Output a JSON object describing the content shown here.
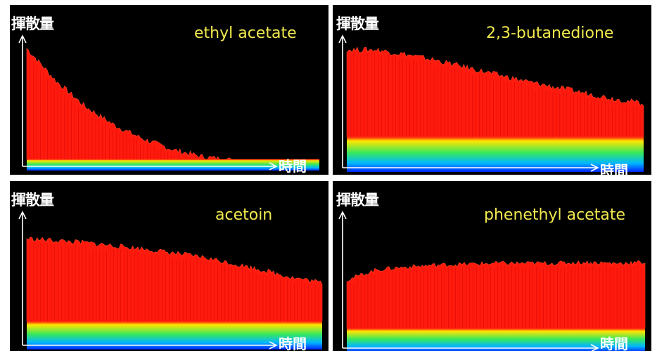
{
  "chart_data": [
    {
      "type": "area",
      "title": "ethyl acetate",
      "ylabel": "揮散量",
      "xlabel": "時間",
      "x": [
        0,
        0.1,
        0.2,
        0.3,
        0.4,
        0.5,
        0.6,
        0.7,
        0.8,
        0.9,
        1.0
      ],
      "values": [
        1.0,
        0.72,
        0.5,
        0.34,
        0.22,
        0.13,
        0.07,
        0.04,
        0.02,
        0.01,
        0.0
      ],
      "colors": {
        "body": "#ff1a0e",
        "band_top": "#ffe600",
        "band_mid": "#39e85a",
        "band_low": "#00b7ff",
        "base": "#0024ff"
      }
    },
    {
      "type": "area",
      "title": "2,3-butanedione",
      "ylabel": "揮散量",
      "xlabel": "時間",
      "x": [
        0,
        0.1,
        0.2,
        0.3,
        0.4,
        0.5,
        0.6,
        0.7,
        0.8,
        0.9,
        1.0
      ],
      "values": [
        1.0,
        1.0,
        0.96,
        0.91,
        0.85,
        0.79,
        0.73,
        0.68,
        0.63,
        0.58,
        0.54
      ],
      "colors": {
        "body": "#ff1a0e",
        "band_top": "#ffe600",
        "band_mid": "#39e85a",
        "band_low": "#00b7ff",
        "base": "#0024ff"
      }
    },
    {
      "type": "area",
      "title": "acetoin",
      "ylabel": "揮散量",
      "xlabel": "時間",
      "x": [
        0,
        0.1,
        0.2,
        0.3,
        0.4,
        0.5,
        0.6,
        0.7,
        0.8,
        0.9,
        1.0
      ],
      "values": [
        1.0,
        0.98,
        0.96,
        0.93,
        0.9,
        0.86,
        0.82,
        0.76,
        0.7,
        0.63,
        0.58
      ],
      "colors": {
        "body": "#ff1a0e",
        "band_top": "#ffe600",
        "band_mid": "#39e85a",
        "band_low": "#00b7ff",
        "base": "#0024ff"
      }
    },
    {
      "type": "area",
      "title": "phenethyl acetate",
      "ylabel": "揮散量",
      "xlabel": "時間",
      "x": [
        0,
        0.1,
        0.2,
        0.3,
        0.4,
        0.5,
        0.6,
        0.7,
        0.8,
        0.9,
        1.0
      ],
      "values": [
        0.72,
        0.83,
        0.86,
        0.88,
        0.89,
        0.9,
        0.9,
        0.9,
        0.91,
        0.9,
        0.91
      ],
      "colors": {
        "body": "#ff1a0e",
        "band_top": "#ffe600",
        "band_mid": "#39e85a",
        "band_low": "#00b7ff",
        "base": "#0024ff"
      }
    }
  ]
}
